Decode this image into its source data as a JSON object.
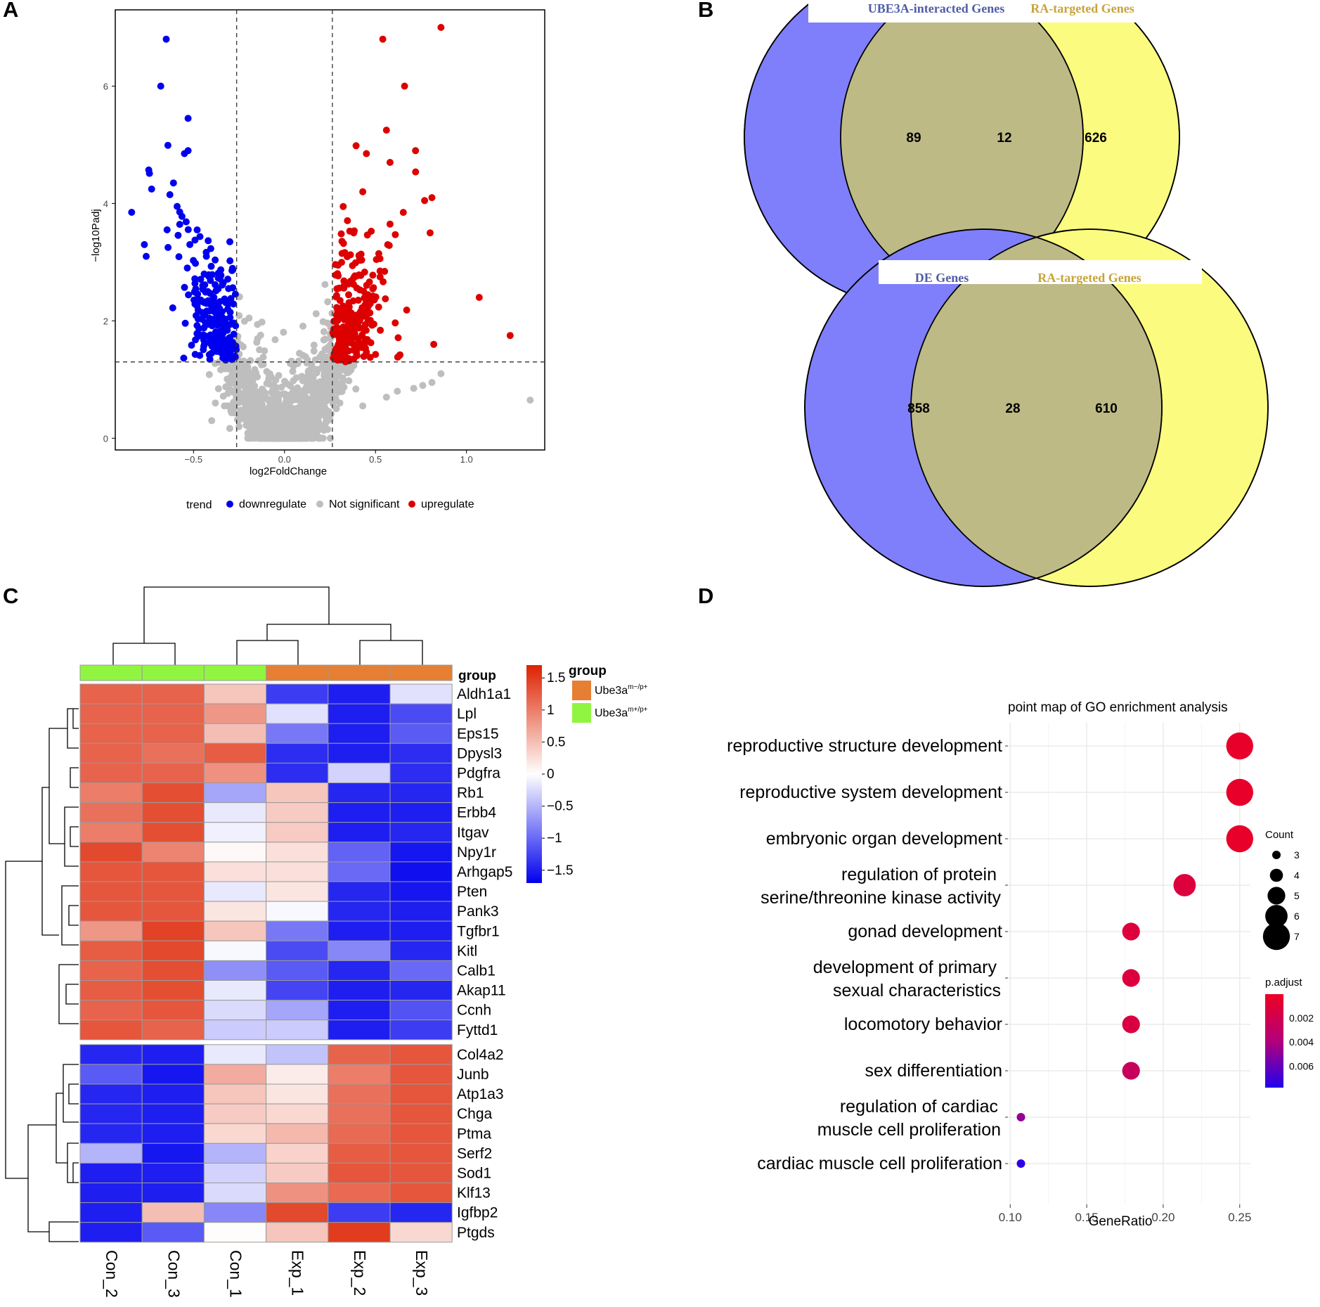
{
  "colors": {
    "down": "#0000ee",
    "up": "#dd0000",
    "ns": "#bebebe",
    "venn_left": "#7f7ffb",
    "venn_right": "#fbfb80",
    "venn_overlap": "#bdba86",
    "title_left": "#4f5da6",
    "title_right": "#c8a33a",
    "hm_low": "#0000ee",
    "hm_mid": "#ffffff",
    "hm_high": "#dd2200",
    "grp_mut": "#e67f33",
    "grp_wt": "#90f540"
  },
  "panels": {
    "A": "A",
    "B": "B",
    "C": "C",
    "D": "D"
  },
  "volcano": {
    "xlabel": "log2FoldChange",
    "ylabel": "−log10Padj",
    "x_ticks": [
      "−0.5",
      "0.0",
      "0.5",
      "1.0"
    ],
    "y_ticks": [
      "0",
      "2",
      "4",
      "6"
    ],
    "legend_title": "trend",
    "legend": {
      "down": "downregulate",
      "ns": "Not significant",
      "up": "upregulate"
    }
  },
  "chart_data": [
    {
      "type": "scatter",
      "title": "",
      "xlabel": "log2FoldChange",
      "ylabel": "−log10Padj",
      "xlim": [
        -0.93,
        1.43
      ],
      "ylim": [
        -0.2,
        7.3
      ],
      "vlines": [
        -0.263,
        0.263
      ],
      "hline": 1.3,
      "series": [
        {
          "name": "downregulate",
          "points": [
            [
              -0.65,
              6.8
            ],
            [
              -0.68,
              6.0
            ],
            [
              -0.53,
              5.45
            ],
            [
              -0.53,
              4.9
            ],
            [
              -0.55,
              4.85
            ],
            [
              -0.61,
              4.35
            ],
            [
              -0.84,
              3.85
            ],
            [
              -0.63,
              4.15
            ],
            [
              -0.59,
              3.95
            ],
            [
              -0.77,
              3.3
            ],
            [
              -0.76,
              3.1
            ],
            [
              -0.64,
              3.25
            ],
            [
              -0.48,
              3.55
            ],
            [
              -0.52,
              3.3
            ]
          ]
        },
        {
          "name": "upregulate",
          "points": [
            [
              0.86,
              7.0
            ],
            [
              0.54,
              6.8
            ],
            [
              0.66,
              6.0
            ],
            [
              0.56,
              5.25
            ],
            [
              0.72,
              4.9
            ],
            [
              0.45,
              4.85
            ],
            [
              0.58,
              4.7
            ],
            [
              0.77,
              4.05
            ],
            [
              0.81,
              4.1
            ],
            [
              0.43,
              4.2
            ],
            [
              0.8,
              3.5
            ],
            [
              1.07,
              2.4
            ],
            [
              1.24,
              1.75
            ],
            [
              0.82,
              1.6
            ],
            [
              0.58,
              3.65
            ],
            [
              0.38,
              3.5
            ]
          ]
        },
        {
          "name": "Not significant",
          "points": [
            [
              1.35,
              0.65
            ],
            [
              0.71,
              0.85
            ],
            [
              0.76,
              0.9
            ],
            [
              0.81,
              0.95
            ],
            [
              0.86,
              1.1
            ],
            [
              0.62,
              0.8
            ],
            [
              0.56,
              0.7
            ],
            [
              0.43,
              0.55
            ],
            [
              -0.38,
              0.6
            ],
            [
              -0.33,
              0.55
            ],
            [
              -0.4,
              0.3
            ]
          ]
        }
      ]
    },
    {
      "type": "venn",
      "sets": [
        "UBE3A-interacted Genes",
        "RA-targeted Genes"
      ],
      "values": {
        "left_only": 89,
        "both": 12,
        "right_only": 626
      }
    },
    {
      "type": "venn",
      "sets": [
        "DE Genes",
        "RA-targeted Genes"
      ],
      "values": {
        "left_only": 858,
        "both": 28,
        "right_only": 610
      }
    },
    {
      "type": "heatmap",
      "columns": [
        "Con_2",
        "Con_3",
        "Con_1",
        "Exp_1",
        "Exp_2",
        "Exp_3"
      ],
      "column_groups": [
        "wt",
        "wt",
        "wt",
        "mut",
        "mut",
        "mut"
      ],
      "rows": [
        "Aldh1a1",
        "Lpl",
        "Eps15",
        "Dpysl3",
        "Pdgfra",
        "Rb1",
        "Erbb4",
        "Itgav",
        "Npy1r",
        "Arhgap5",
        "Pten",
        "Pank3",
        "Tgfbr1",
        "Kitl",
        "Calb1",
        "Akap11",
        "Ccnh",
        "Fyttd1",
        "Col4a2",
        "Junb",
        "Atp1a3",
        "Chga",
        "Ptma",
        "Serf2",
        "Sod1",
        "Klf13",
        "Igfbp2",
        "Ptgds"
      ],
      "values": [
        [
          1.2,
          1.2,
          0.45,
          -1.3,
          -1.5,
          -0.2
        ],
        [
          1.2,
          1.2,
          0.8,
          -0.2,
          -1.5,
          -1.2
        ],
        [
          1.2,
          1.2,
          0.5,
          -0.9,
          -1.5,
          -1.1
        ],
        [
          1.2,
          1.1,
          1.25,
          -1.4,
          -1.5,
          -1.4
        ],
        [
          1.2,
          1.2,
          0.85,
          -1.4,
          -0.3,
          -1.4
        ],
        [
          1.0,
          1.35,
          -0.6,
          0.45,
          -1.45,
          -1.45
        ],
        [
          1.1,
          1.35,
          -0.15,
          0.4,
          -1.5,
          -1.5
        ],
        [
          1.0,
          1.35,
          -0.1,
          0.4,
          -1.5,
          -1.45
        ],
        [
          1.4,
          0.95,
          0.05,
          0.25,
          -1.05,
          -1.55
        ],
        [
          1.3,
          1.3,
          0.25,
          0.25,
          -1.0,
          -1.6
        ],
        [
          1.3,
          1.3,
          -0.15,
          0.2,
          -1.45,
          -1.55
        ],
        [
          1.3,
          1.3,
          0.2,
          -0.05,
          -1.45,
          -1.5
        ],
        [
          0.8,
          1.45,
          0.45,
          -0.9,
          -1.5,
          -1.5
        ],
        [
          1.25,
          1.4,
          -0.05,
          -1.2,
          -0.8,
          -1.45
        ],
        [
          1.2,
          1.35,
          -0.75,
          -1.1,
          -1.45,
          -1.0
        ],
        [
          1.25,
          1.35,
          -0.15,
          -1.25,
          -1.5,
          -1.45
        ],
        [
          1.2,
          1.3,
          -0.25,
          -0.6,
          -1.5,
          -1.15
        ],
        [
          1.3,
          1.2,
          -0.35,
          -0.35,
          -1.5,
          -1.3
        ],
        [
          -1.45,
          -1.5,
          -0.15,
          -0.4,
          1.2,
          1.3
        ],
        [
          -1.1,
          -1.55,
          0.65,
          0.15,
          1.0,
          1.3
        ],
        [
          -1.45,
          -1.5,
          0.45,
          0.2,
          1.1,
          1.3
        ],
        [
          -1.45,
          -1.5,
          0.4,
          0.3,
          1.1,
          1.3
        ],
        [
          -1.45,
          -1.5,
          0.3,
          0.55,
          1.15,
          1.3
        ],
        [
          -0.5,
          -1.55,
          -0.5,
          0.35,
          1.25,
          1.3
        ],
        [
          -1.5,
          -1.5,
          -0.3,
          0.4,
          1.3,
          1.3
        ],
        [
          -1.5,
          -1.5,
          -0.25,
          0.85,
          1.15,
          1.3
        ],
        [
          -1.5,
          0.5,
          -0.8,
          1.4,
          -1.3,
          -1.45
        ],
        [
          -1.5,
          -1.1,
          0.02,
          0.45,
          1.5,
          0.3
        ]
      ],
      "colorbar_ticks": [
        "1.5",
        "1",
        "0.5",
        "0",
        "−0.5",
        "−1",
        "−1.5"
      ],
      "colorbar_values": [
        1.5,
        1,
        0.5,
        0,
        -0.5,
        -1,
        -1.5
      ],
      "vmin": -1.7,
      "vmax": 1.7
    },
    {
      "type": "scatter",
      "title": "point map of GO enrichment analysis",
      "xlabel": "GeneRatio",
      "xlim": [
        0.1,
        0.255
      ],
      "x_ticks": [
        "0.10",
        "0.15",
        "0.20",
        "0.25"
      ],
      "x_tick_values": [
        0.1,
        0.15,
        0.2,
        0.25
      ],
      "terms": [
        {
          "lines": [
            "reproductive structure development"
          ],
          "gene_ratio": 0.25,
          "count": 7,
          "p_adjust": 0.0004
        },
        {
          "lines": [
            "reproductive system development"
          ],
          "gene_ratio": 0.25,
          "count": 7,
          "p_adjust": 0.0004
        },
        {
          "lines": [
            "embryonic organ development"
          ],
          "gene_ratio": 0.25,
          "count": 7,
          "p_adjust": 0.0004
        },
        {
          "lines": [
            "regulation of protein",
            "serine/threonine kinase activity"
          ],
          "gene_ratio": 0.214,
          "count": 6,
          "p_adjust": 0.0012
        },
        {
          "lines": [
            "gonad development"
          ],
          "gene_ratio": 0.179,
          "count": 5,
          "p_adjust": 0.0012
        },
        {
          "lines": [
            "development of primary",
            "sexual characteristics"
          ],
          "gene_ratio": 0.179,
          "count": 5,
          "p_adjust": 0.0012
        },
        {
          "lines": [
            "locomotory behavior"
          ],
          "gene_ratio": 0.179,
          "count": 5,
          "p_adjust": 0.0014
        },
        {
          "lines": [
            "sex differentiation"
          ],
          "gene_ratio": 0.179,
          "count": 5,
          "p_adjust": 0.0026
        },
        {
          "lines": [
            "regulation of cardiac",
            "muscle cell proliferation"
          ],
          "gene_ratio": 0.107,
          "count": 3,
          "p_adjust": 0.0048
        },
        {
          "lines": [
            "cardiac muscle cell proliferation"
          ],
          "gene_ratio": 0.107,
          "count": 3,
          "p_adjust": 0.0075
        }
      ],
      "count_legend_title": "Count",
      "count_legend": [
        3,
        4,
        5,
        6,
        7
      ],
      "padj_legend_title": "p.adjust",
      "padj_legend_ticks": [
        "0.002",
        "0.004",
        "0.006"
      ],
      "padj_legend_values": [
        0.002,
        0.004,
        0.006
      ],
      "padj_range": [
        0.0,
        0.0078
      ]
    }
  ],
  "heatmap_legend": {
    "title": "group",
    "row_label": "group",
    "items": [
      {
        "key": "mut",
        "base": "Ube3a",
        "sup": "m−/p+"
      },
      {
        "key": "wt",
        "base": "Ube3a",
        "sup": "m+/p+"
      }
    ]
  }
}
